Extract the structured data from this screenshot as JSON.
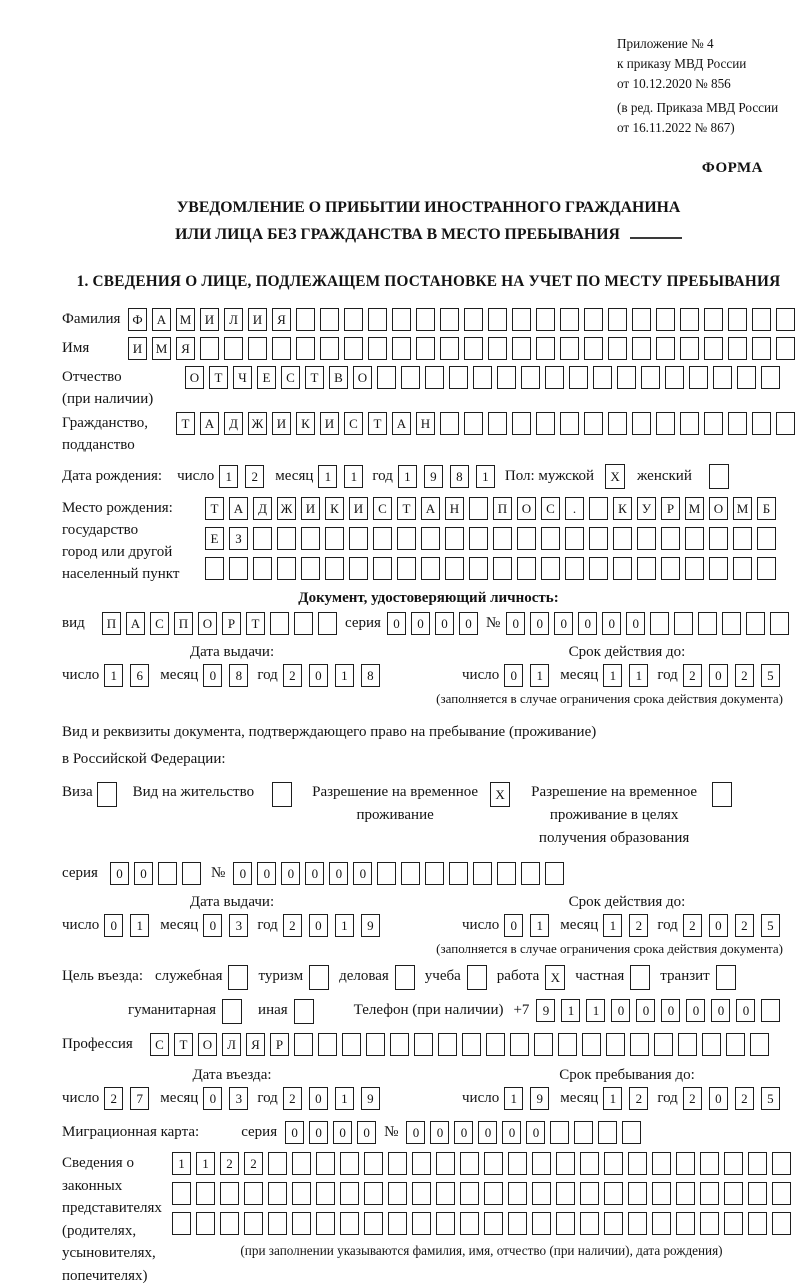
{
  "meta": {
    "annex": [
      "Приложение № 4",
      "к приказу МВД России",
      "от 10.12.2020 № 856"
    ],
    "edition": [
      "(в ред. Приказа МВД России",
      "от 16.11.2022 № 867)"
    ],
    "form_word": "ФОРМА"
  },
  "title": {
    "line1": "УВЕДОМЛЕНИЕ О ПРИБЫТИИ ИНОСТРАННОГО ГРАЖДАНИНА",
    "line2": "ИЛИ ЛИЦА БЕЗ ГРАЖДАНСТВА В МЕСТО ПРЕБЫВАНИЯ"
  },
  "section1": {
    "heading": "1. СВЕДЕНИЯ О ЛИЦЕ, ПОДЛЕЖАЩЕМ ПОСТАНОВКЕ НА УЧЕТ ПО МЕСТУ ПРЕБЫВАНИЯ"
  },
  "fields": {
    "surname": {
      "label": "Фамилия",
      "cells": {
        "v": "ФАМИЛИЯ",
        "n": 28
      }
    },
    "name": {
      "label": "Имя",
      "cells": {
        "v": "ИМЯ",
        "n": 28
      }
    },
    "patronymic": {
      "label": "Отчество",
      "sub": "(при наличии)",
      "cells": {
        "v": "ОТЧЕСТВО",
        "n": 25
      }
    },
    "citizenship": {
      "label": "Гражданство,",
      "sub": "подданство",
      "cells": {
        "v": "ТАДЖИКИСТАН",
        "n": 26
      }
    },
    "birth_date": {
      "label": "Дата рождения:",
      "day_label": "число",
      "day": {
        "v": "12",
        "n": 2
      },
      "month_label": "месяц",
      "month": {
        "v": "11",
        "n": 2
      },
      "year_label": "год",
      "year": {
        "v": "1981",
        "n": 4
      },
      "sex_label": "Пол: мужской",
      "male_box": {
        "v": "X",
        "n": 1
      },
      "female_label": "женский",
      "female_box": {
        "v": "",
        "n": 1
      }
    },
    "birth_place": {
      "label1": "Место рождения:",
      "label2": "государство",
      "label3": "город или другой",
      "label4": "населенный пункт",
      "row1": {
        "v": "ТАДЖИКИСТАН ПОС. КУРМОМБ",
        "n": 24
      },
      "row2": {
        "v": "ЕЗ",
        "n": 24
      },
      "row3": {
        "v": "",
        "n": 24
      }
    },
    "identity_doc": {
      "heading": "Документ, удостоверяющий личность:",
      "kind_label": "вид",
      "kind": {
        "v": "ПАСПОРТ",
        "n": 10
      },
      "series_label": "серия",
      "series": {
        "v": "0000",
        "n": 4
      },
      "no_label": "№",
      "number": {
        "v": "000000",
        "n": 12
      },
      "issue_heading": "Дата выдачи:",
      "issue_day_label": "число",
      "issue_day": {
        "v": "16",
        "n": 2
      },
      "issue_month_label": "месяц",
      "issue_month": {
        "v": "08",
        "n": 2
      },
      "issue_year_label": "год",
      "issue_year": {
        "v": "2018",
        "n": 4
      },
      "expiry_heading": "Срок действия до:",
      "expiry_day_label": "число",
      "expiry_day": {
        "v": "01",
        "n": 2
      },
      "expiry_month_label": "месяц",
      "expiry_month": {
        "v": "11",
        "n": 2
      },
      "expiry_year_label": "год",
      "expiry_year": {
        "v": "2025",
        "n": 4
      },
      "note": "(заполняется в случае ограничения срока действия документа)"
    },
    "residence_doc": {
      "intro1": "Вид и реквизиты документа, подтверждающего право на пребывание (проживание)",
      "intro2": "в Российской Федерации:",
      "visa_label": "Виза",
      "visa_box": {
        "v": "",
        "n": 1
      },
      "residence_permit_label": "Вид на жительство",
      "residence_permit_box": {
        "v": "",
        "n": 1
      },
      "temp_permit_label": "Разрешение на временное проживание",
      "temp_permit_box": {
        "v": "X",
        "n": 1
      },
      "edu_permit_label": "Разрешение на временное проживание в целях получения образования",
      "edu_permit_box": {
        "v": "",
        "n": 1
      },
      "series_label": "серия",
      "series": {
        "v": "00",
        "n": 4
      },
      "no_label": "№",
      "number": {
        "v": "000000",
        "n": 14
      },
      "issue_heading": "Дата выдачи:",
      "issue_day_label": "число",
      "issue_day": {
        "v": "01",
        "n": 2
      },
      "issue_month_label": "месяц",
      "issue_month": {
        "v": "03",
        "n": 2
      },
      "issue_year_label": "год",
      "issue_year": {
        "v": "2019",
        "n": 4
      },
      "expiry_heading": "Срок действия до:",
      "expiry_day_label": "число",
      "expiry_day": {
        "v": "01",
        "n": 2
      },
      "expiry_month_label": "месяц",
      "expiry_month": {
        "v": "12",
        "n": 2
      },
      "expiry_year_label": "год",
      "expiry_year": {
        "v": "2025",
        "n": 4
      },
      "note": "(заполняется в случае ограничения срока действия документа)"
    },
    "visit_purpose": {
      "label": "Цель въезда:",
      "items": [
        {
          "label": "служебная",
          "box": {
            "v": "",
            "n": 1
          }
        },
        {
          "label": "туризм",
          "box": {
            "v": "",
            "n": 1
          }
        },
        {
          "label": "деловая",
          "box": {
            "v": "",
            "n": 1
          }
        },
        {
          "label": "учеба",
          "box": {
            "v": "",
            "n": 1
          }
        },
        {
          "label": "работа",
          "box": {
            "v": "X",
            "n": 1
          }
        },
        {
          "label": "частная",
          "box": {
            "v": "",
            "n": 1
          }
        },
        {
          "label": "транзит",
          "box": {
            "v": "",
            "n": 1
          }
        },
        {
          "label": "гуманитарная",
          "box": {
            "v": "",
            "n": 1
          }
        },
        {
          "label": "иная",
          "box": {
            "v": "",
            "n": 1
          }
        }
      ],
      "phone_label": "Телефон (при наличии)",
      "phone_prefix": "+7",
      "phone": {
        "v": "911000000",
        "n": 10
      }
    },
    "profession": {
      "label": "Профессия",
      "cells": {
        "v": "СТОЛЯР",
        "n": 26
      }
    },
    "entry": {
      "entry_heading": "Дата въезда:",
      "entry_day_label": "число",
      "entry_day": {
        "v": "27",
        "n": 2
      },
      "entry_month_label": "месяц",
      "entry_month": {
        "v": "03",
        "n": 2
      },
      "entry_year_label": "год",
      "entry_year": {
        "v": "2019",
        "n": 4
      },
      "stay_heading": "Срок пребывания до:",
      "stay_day_label": "число",
      "stay_day": {
        "v": "19",
        "n": 2
      },
      "stay_month_label": "месяц",
      "stay_month": {
        "v": "12",
        "n": 2
      },
      "stay_year_label": "год",
      "stay_year": {
        "v": "2025",
        "n": 4
      }
    },
    "migration_card": {
      "label": "Миграционная карта:",
      "series_label": "серия",
      "series": {
        "v": "0000",
        "n": 4
      },
      "no_label": "№",
      "number": {
        "v": "000000",
        "n": 10
      }
    },
    "guardians": {
      "label_lines": [
        "Сведения о",
        "законных",
        "представителях",
        "(родителях,",
        "усыновителях,",
        "попечителях)"
      ],
      "row1": {
        "v": "1122",
        "n": 26
      },
      "row2": {
        "v": "",
        "n": 26
      },
      "row3": {
        "v": "",
        "n": 26
      },
      "note": "(при заполнении указываются фамилия, имя, отчество (при наличии), дата рождения)"
    }
  }
}
